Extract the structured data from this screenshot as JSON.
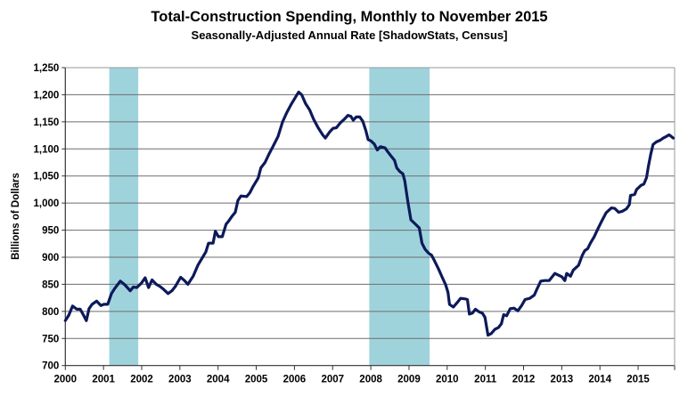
{
  "chart_data": {
    "type": "line",
    "title": "Total-Construction Spending, Monthly to November 2015",
    "subtitle": "Seasonally-Adjusted Annual Rate [ShadowStats, Census]",
    "xlabel": "",
    "ylabel": "Billions  of Dollars",
    "xlim": [
      2000,
      2016
    ],
    "ylim": [
      700,
      1250
    ],
    "grid": true,
    "y_ticks": [
      "700",
      "750",
      "800",
      "850",
      "900",
      "950",
      "1,000",
      "1,050",
      "1,100",
      "1,150",
      "1,200",
      "1,250"
    ],
    "y_tick_values": [
      700,
      750,
      800,
      850,
      900,
      950,
      1000,
      1050,
      1100,
      1150,
      1200,
      1250
    ],
    "x_ticks": [
      "2000",
      "2001",
      "2002",
      "2003",
      "2004",
      "2005",
      "2006",
      "2007",
      "2008",
      "2009",
      "2010",
      "2011",
      "2012",
      "2013",
      "2014",
      "2015"
    ],
    "x_tick_values": [
      2000,
      2001,
      2002,
      2003,
      2004,
      2005,
      2006,
      2007,
      2008,
      2009,
      2010,
      2011,
      2012,
      2013,
      2014,
      2015
    ],
    "recessions": [
      [
        2001.15,
        2001.91
      ],
      [
        2007.96,
        2009.54
      ]
    ],
    "colors": {
      "line": "#0c1a5a",
      "recession": "#9fd3dc",
      "grid": "#6e6e6e"
    },
    "series": [
      {
        "name": "Total Construction Spending",
        "x": [
          2000.0,
          2000.09,
          2000.19,
          2000.3,
          2000.39,
          2000.47,
          2000.55,
          2000.62,
          2000.7,
          2000.82,
          2000.93,
          2001.01,
          2001.11,
          2001.21,
          2001.29,
          2001.44,
          2001.56,
          2001.7,
          2001.78,
          2001.87,
          2001.99,
          2002.09,
          2002.18,
          2002.27,
          2002.38,
          2002.48,
          2002.57,
          2002.69,
          2002.79,
          2002.88,
          2003.02,
          2003.12,
          2003.21,
          2003.35,
          2003.47,
          2003.58,
          2003.68,
          2003.75,
          2003.87,
          2003.93,
          2004.01,
          2004.11,
          2004.21,
          2004.28,
          2004.36,
          2004.45,
          2004.52,
          2004.6,
          2004.75,
          2004.83,
          2004.92,
          2005.05,
          2005.12,
          2005.23,
          2005.33,
          2005.45,
          2005.57,
          2005.69,
          2005.8,
          2005.92,
          2006.04,
          2006.11,
          2006.19,
          2006.29,
          2006.4,
          2006.5,
          2006.62,
          2006.74,
          2006.81,
          2006.92,
          2007.01,
          2007.1,
          2007.2,
          2007.31,
          2007.4,
          2007.48,
          2007.54,
          2007.62,
          2007.71,
          2007.79,
          2007.87,
          2007.93,
          2008.0,
          2008.09,
          2008.17,
          2008.25,
          2008.37,
          2008.45,
          2008.54,
          2008.62,
          2008.68,
          2008.76,
          2008.84,
          2008.89,
          2008.97,
          2009.05,
          2009.17,
          2009.27,
          2009.34,
          2009.42,
          2009.52,
          2009.59,
          2009.67,
          2009.77,
          2009.87,
          2009.96,
          2010.02,
          2010.06,
          2010.16,
          2010.26,
          2010.35,
          2010.47,
          2010.53,
          2010.58,
          2010.66,
          2010.74,
          2010.84,
          2010.92,
          2010.99,
          2011.07,
          2011.15,
          2011.25,
          2011.34,
          2011.42,
          2011.48,
          2011.56,
          2011.65,
          2011.75,
          2011.85,
          2011.95,
          2012.04,
          2012.16,
          2012.28,
          2012.35,
          2012.45,
          2012.55,
          2012.67,
          2012.74,
          2012.82,
          2012.91,
          2013.0,
          2013.08,
          2013.13,
          2013.23,
          2013.3,
          2013.44,
          2013.54,
          2013.6,
          2013.68,
          2013.75,
          2013.85,
          2013.95,
          2014.05,
          2014.16,
          2014.3,
          2014.39,
          2014.49,
          2014.59,
          2014.69,
          2014.77,
          2014.8,
          2014.91,
          2014.96,
          2015.08,
          2015.15,
          2015.22,
          2015.27,
          2015.33,
          2015.39,
          2015.48,
          2015.58,
          2015.66,
          2015.74,
          2015.81,
          2015.85,
          2015.92
        ],
        "values": [
          783,
          793,
          810,
          804,
          804,
          794,
          783,
          805,
          813,
          819,
          811,
          813,
          813,
          833,
          842,
          856,
          849,
          838,
          845,
          844,
          852,
          862,
          844,
          858,
          850,
          846,
          841,
          833,
          838,
          846,
          863,
          857,
          850,
          865,
          885,
          898,
          910,
          926,
          926,
          948,
          938,
          938,
          961,
          967,
          975,
          983,
          1005,
          1013,
          1012,
          1019,
          1031,
          1046,
          1065,
          1075,
          1090,
          1106,
          1123,
          1150,
          1167,
          1183,
          1197,
          1205,
          1200,
          1184,
          1172,
          1155,
          1139,
          1126,
          1120,
          1131,
          1138,
          1139,
          1148,
          1155,
          1162,
          1160,
          1153,
          1159,
          1159,
          1151,
          1134,
          1117,
          1115,
          1109,
          1098,
          1104,
          1102,
          1094,
          1086,
          1079,
          1065,
          1058,
          1054,
          1041,
          1002,
          969,
          961,
          954,
          926,
          915,
          907,
          904,
          893,
          879,
          863,
          849,
          835,
          813,
          808,
          816,
          824,
          823,
          822,
          795,
          797,
          804,
          799,
          797,
          789,
          756,
          759,
          767,
          770,
          777,
          794,
          792,
          805,
          806,
          801,
          811,
          822,
          824,
          830,
          841,
          856,
          857,
          857,
          863,
          870,
          867,
          864,
          857,
          870,
          865,
          876,
          885,
          904,
          912,
          916,
          926,
          938,
          953,
          967,
          982,
          991,
          990,
          983,
          985,
          989,
          997,
          1014,
          1016,
          1025,
          1033,
          1035,
          1047,
          1068,
          1090,
          1108,
          1113,
          1116,
          1120,
          1123,
          1126,
          1124,
          1120
        ]
      }
    ]
  }
}
